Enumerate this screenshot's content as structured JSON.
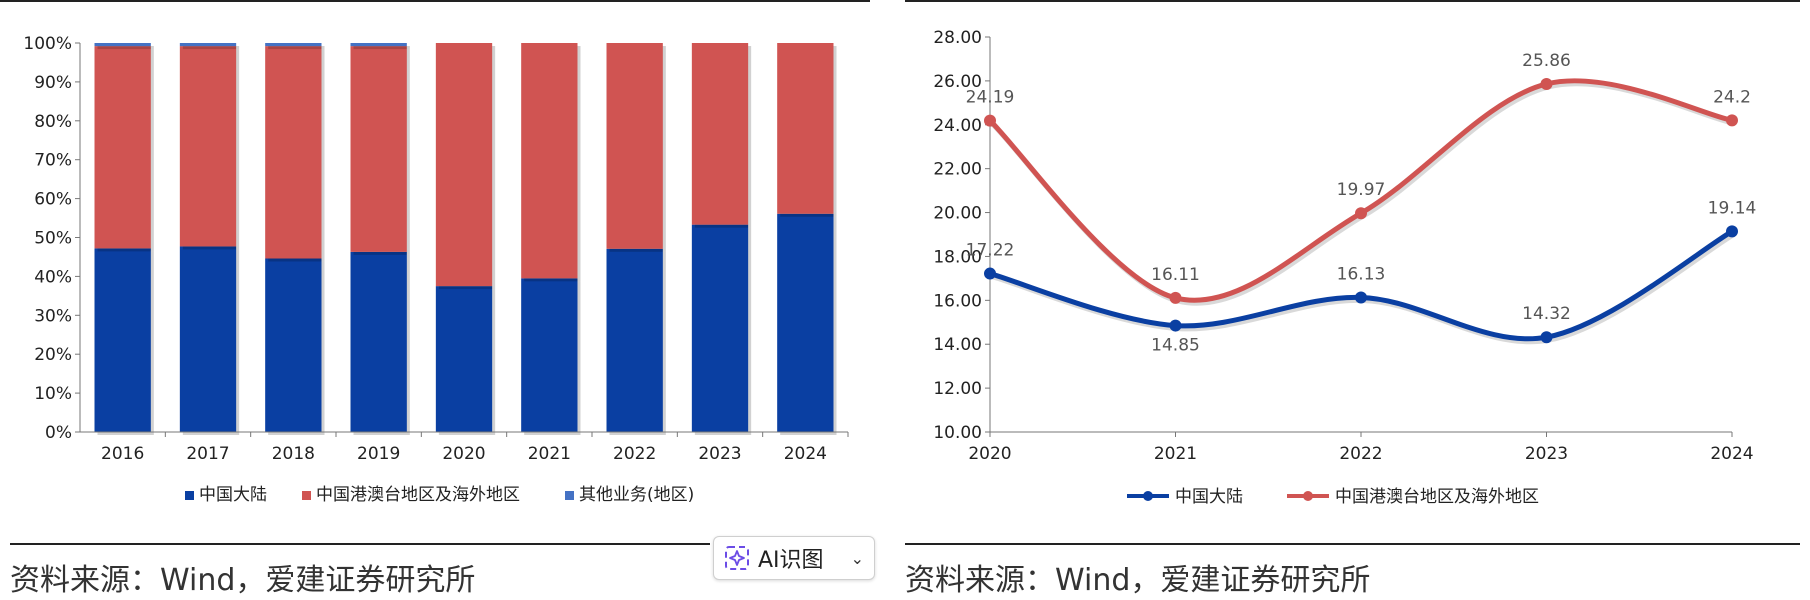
{
  "source_label": "资料来源：Wind，爱建证券研究所",
  "ai_button": {
    "label": "AI识图",
    "icon": "sparkle-icon",
    "chevron": "chevron-down-icon"
  },
  "colors": {
    "mainland": "#0a3fa2",
    "overseas": "#d05452",
    "other": "#4472c4"
  },
  "chart_data": [
    {
      "type": "bar",
      "stacked": true,
      "categories": [
        "2016",
        "2017",
        "2018",
        "2019",
        "2020",
        "2021",
        "2022",
        "2023",
        "2024"
      ],
      "series": [
        {
          "name": "中国大陆",
          "values": [
            47.2,
            47.7,
            44.6,
            46.3,
            37.5,
            39.5,
            47.1,
            53.3,
            56.1
          ]
        },
        {
          "name": "中国港澳台地区及海外地区",
          "values": [
            52.0,
            51.5,
            54.6,
            52.9,
            62.5,
            60.5,
            52.9,
            46.7,
            43.9
          ]
        },
        {
          "name": "其他业务(地区)",
          "values": [
            0.8,
            0.8,
            0.8,
            0.8,
            0,
            0,
            0,
            0,
            0
          ]
        }
      ],
      "ylim": [
        0,
        100
      ],
      "yticks": [
        "0%",
        "10%",
        "20%",
        "30%",
        "40%",
        "50%",
        "60%",
        "70%",
        "80%",
        "90%",
        "100%"
      ],
      "legend": "bottom",
      "grid": false
    },
    {
      "type": "line",
      "smooth": true,
      "x": [
        "2020",
        "2021",
        "2022",
        "2023",
        "2024"
      ],
      "series": [
        {
          "name": "中国大陆",
          "values": [
            17.22,
            14.85,
            16.13,
            14.32,
            19.14
          ],
          "labels": [
            "17.22",
            "14.85",
            "16.13",
            "14.32",
            "19.14"
          ]
        },
        {
          "name": "中国港澳台地区及海外地区",
          "values": [
            24.19,
            16.11,
            19.97,
            25.86,
            24.2
          ],
          "labels": [
            "24.19",
            "16.11",
            "19.97",
            "25.86",
            "24.2"
          ]
        }
      ],
      "ylim": [
        10,
        28
      ],
      "yticks": [
        "10.00",
        "12.00",
        "14.00",
        "16.00",
        "18.00",
        "20.00",
        "22.00",
        "24.00",
        "26.00",
        "28.00"
      ],
      "legend": "bottom",
      "grid": false
    }
  ]
}
